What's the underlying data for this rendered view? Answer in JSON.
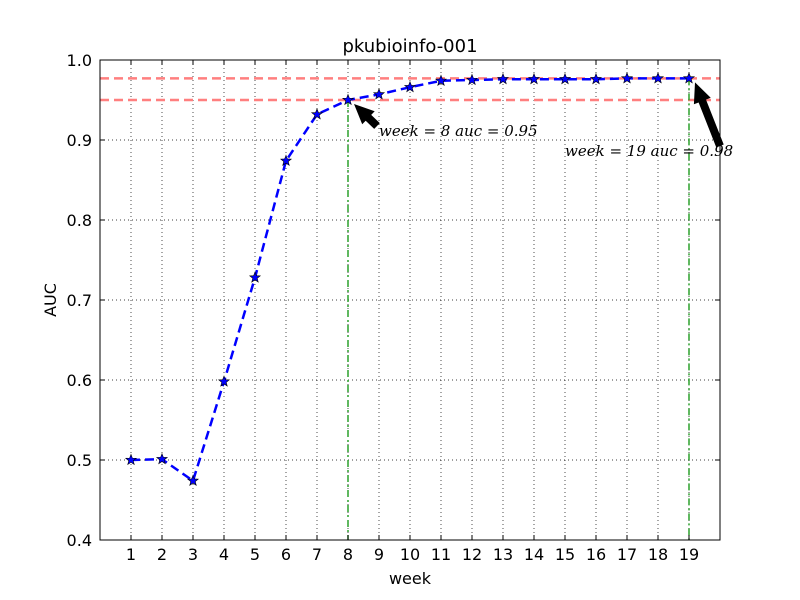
{
  "chart_data": {
    "type": "line",
    "title": "pkubioinfo-001",
    "xlabel": "week",
    "ylabel": "AUC",
    "xlim": [
      0,
      20
    ],
    "ylim": [
      0.4,
      1.0
    ],
    "x_ticks": [
      "1",
      "2",
      "3",
      "4",
      "5",
      "6",
      "7",
      "8",
      "9",
      "10",
      "11",
      "12",
      "13",
      "14",
      "15",
      "16",
      "17",
      "18",
      "19"
    ],
    "y_ticks": [
      "0.4",
      "0.5",
      "0.6",
      "0.7",
      "0.8",
      "0.9",
      "1.0"
    ],
    "grid": true,
    "series": [
      {
        "x": [
          1,
          2,
          3,
          4,
          5,
          6,
          7,
          8,
          9,
          10,
          11,
          12,
          13,
          14,
          15,
          16,
          17,
          18,
          19
        ],
        "values": [
          0.5,
          0.501,
          0.474,
          0.598,
          0.728,
          0.874,
          0.932,
          0.95,
          0.957,
          0.966,
          0.974,
          0.975,
          0.976,
          0.976,
          0.976,
          0.976,
          0.977,
          0.977,
          0.977
        ],
        "color": "#0000ff",
        "marker": "star",
        "style": "dashed"
      }
    ],
    "reference_lines": {
      "horizontal": [
        {
          "y": 0.977,
          "color": "#ff7f7f",
          "style": "dashed"
        },
        {
          "y": 0.95,
          "color": "#ff7f7f",
          "style": "dashed"
        }
      ],
      "vertical": [
        {
          "x": 8,
          "y_to": 0.95,
          "color": "#2ca02c",
          "style": "dashed"
        },
        {
          "x": 19,
          "y_to": 0.977,
          "color": "#2ca02c",
          "style": "dashed"
        }
      ]
    },
    "annotations": [
      {
        "text": "week = 8  auc = 0.95",
        "point": [
          8,
          0.95
        ],
        "text_at": [
          9,
          0.905
        ]
      },
      {
        "text": "week = 19  auc = 0.98",
        "point": [
          19,
          0.977
        ],
        "text_at": [
          15,
          0.88
        ]
      }
    ]
  }
}
